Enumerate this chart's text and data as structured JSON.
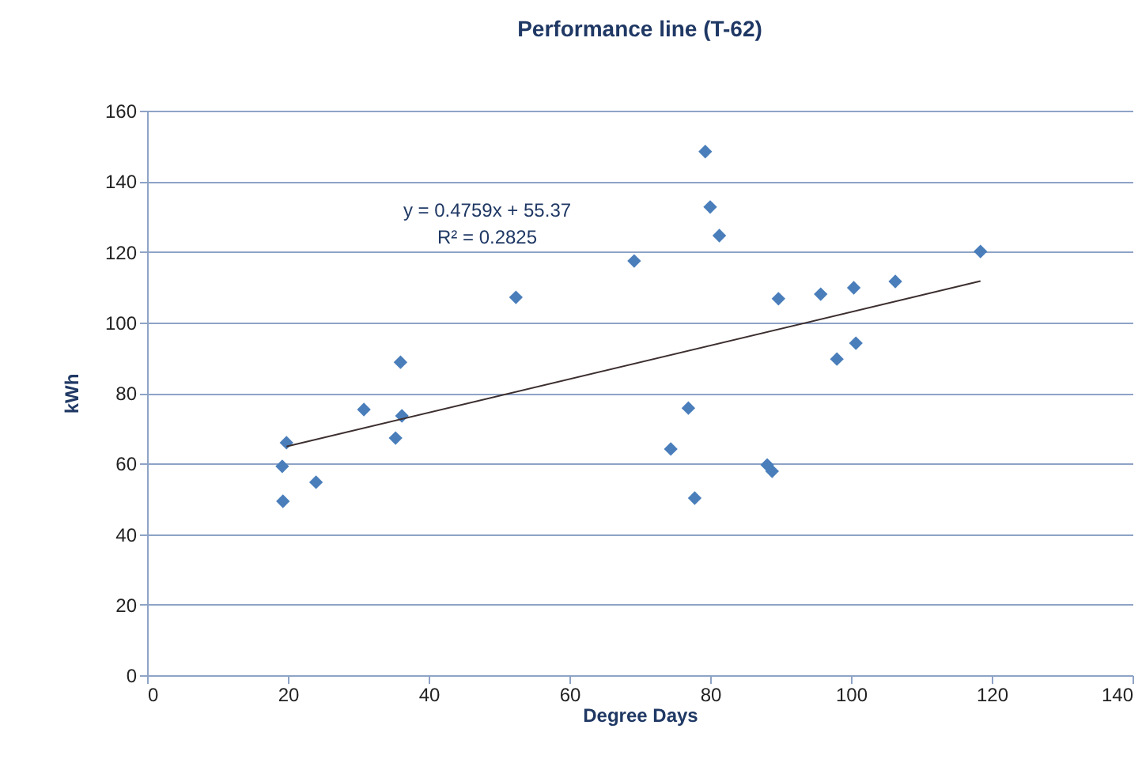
{
  "chart_data": {
    "type": "scatter",
    "title": "Performance line (T-62)",
    "xlabel": "Degree Days",
    "ylabel": "kWh",
    "annotations": [
      "y = 0.4759x + 55.37",
      "R² = 0.2825"
    ],
    "series": [
      {
        "color": "#4a7ebb",
        "marker": "diamond",
        "x": [
          19.2,
          19.3,
          19.8,
          24.0,
          30.8,
          35.3,
          36.0,
          36.2,
          52.4,
          69.2,
          74.4,
          76.9,
          77.8,
          79.3,
          80.0,
          81.3,
          88.1,
          88.8,
          89.7,
          95.7,
          98.0,
          100.4,
          100.7,
          106.3,
          118.4
        ],
        "values": [
          59.2,
          49.3,
          65.9,
          54.7,
          75.3,
          67.2,
          88.7,
          73.5,
          107.1,
          117.4,
          64.1,
          75.7,
          50.2,
          148.4,
          132.7,
          124.6,
          59.6,
          57.8,
          106.7,
          108.0,
          89.6,
          109.8,
          94.1,
          111.6,
          120.1
        ]
      },
      {
        "type": "line",
        "color": "#3d2f2f",
        "x": [
          19.8,
          118.4
        ],
        "values": [
          64.8,
          111.7
        ]
      }
    ],
    "xlim": [
      0,
      140
    ],
    "xticks": [
      0,
      20,
      40,
      60,
      80,
      100,
      120,
      140
    ],
    "ylim": [
      0,
      160
    ],
    "yticks": [
      0,
      20,
      40,
      60,
      80,
      100,
      120,
      140,
      160
    ],
    "grid": "y"
  }
}
